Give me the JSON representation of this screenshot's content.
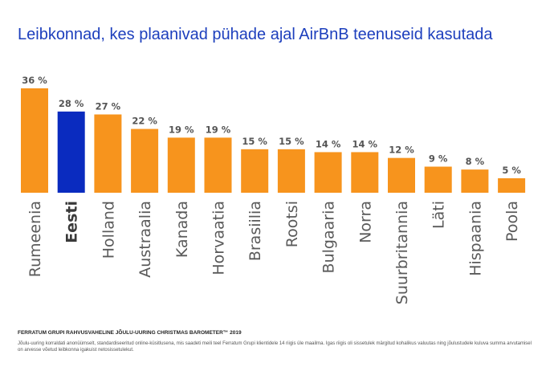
{
  "title": "Leibkonnad, kes plaanivad pühade ajal AirBnB teenuseid kasutada",
  "chart_data": {
    "type": "bar",
    "categories": [
      "Rumeenia",
      "Eesti",
      "Holland",
      "Austraalia",
      "Kanada",
      "Horvaatia",
      "Brasiilia",
      "Rootsi",
      "Bulgaaria",
      "Norra",
      "Suurbritannia",
      "Läti",
      "Hispaania",
      "Poola"
    ],
    "values": [
      36,
      28,
      27,
      22,
      19,
      19,
      15,
      15,
      14,
      14,
      12,
      9,
      8,
      5
    ],
    "value_labels": [
      "36 %",
      "28 %",
      "27 %",
      "22 %",
      "19 %",
      "19 %",
      "15 %",
      "15 %",
      "14 %",
      "14 %",
      "12 %",
      "9 %",
      "8 %",
      "5 %"
    ],
    "highlight": "Eesti",
    "colors": {
      "default": "#f7941d",
      "highlight": "#0a2bbf"
    },
    "ylim": [
      0,
      36
    ],
    "xlabel": "",
    "ylabel": "",
    "grid": false,
    "legend": "none"
  },
  "footer": {
    "source": "FERRATUM GRUPI RAHVUSVAHELINE JÕULU-UURING CHRISTMAS BAROMETER™ 2019",
    "note": "Jõulu-uuring korraldati anonüümselt, standardiseeritud online-küsitlusena, mis saadeti meili teel Ferratum Grupi klientidele 14 riigis üle maailma. Igas riigis oli sissetulek märgitud kohalikus valuutas ning jõulustudele kuluva summa arvutamisel on arvesse võetud leibkonna igakuist netosissetulekut."
  }
}
